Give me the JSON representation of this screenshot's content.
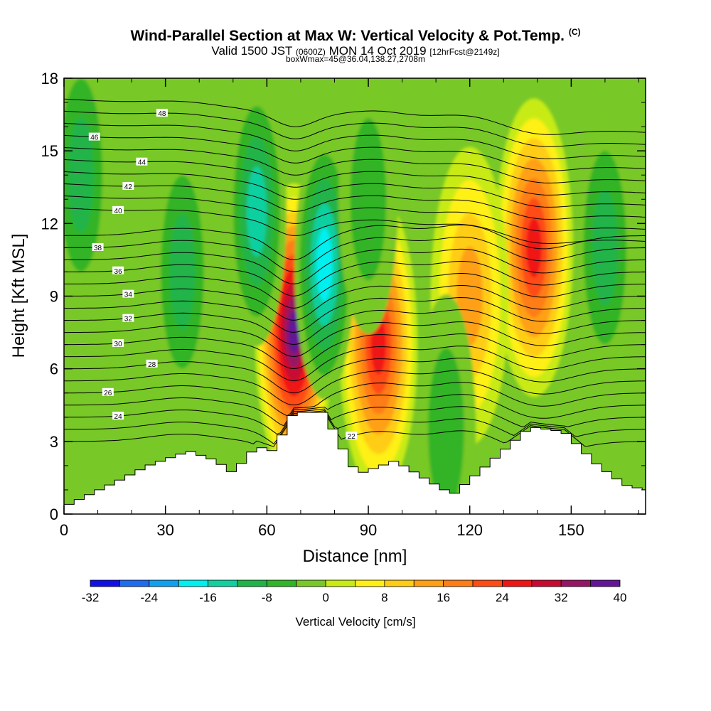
{
  "title": {
    "main": "Wind-Parallel Section at Max W: Vertical Velocity & Pot.Temp.",
    "mark": "(C)",
    "line2_a": "Valid 1500 JST",
    "line2_b": "(0600Z)",
    "line2_c": "MON 14 Oct 2019",
    "line2_d": "[12hrFcst@2149z]",
    "line3": "boxWmax=45@36.04,138.27,2708m"
  },
  "chart_data": {
    "type": "heatmap",
    "xlabel": "Distance [nm]",
    "ylabel": "Height [Kft MSL]",
    "xlim": [
      0,
      172
    ],
    "ylim": [
      0,
      18
    ],
    "x_ticks": [
      0,
      30,
      60,
      90,
      120,
      150
    ],
    "y_ticks": [
      0,
      3,
      6,
      9,
      12,
      15,
      18
    ],
    "colorbar": {
      "label": "Vertical Velocity [cm/s]",
      "ticks": [
        -32,
        -24,
        -16,
        -8,
        0,
        8,
        16,
        24,
        32,
        40
      ],
      "bins": [
        {
          "from": -32,
          "to": -28,
          "color": "#1010e6"
        },
        {
          "from": -28,
          "to": -24,
          "color": "#1e6cf0"
        },
        {
          "from": -24,
          "to": -20,
          "color": "#10a0f0"
        },
        {
          "from": -20,
          "to": -16,
          "color": "#00f0f0"
        },
        {
          "from": -16,
          "to": -12,
          "color": "#10d0a0"
        },
        {
          "from": -12,
          "to": -8,
          "color": "#20b448"
        },
        {
          "from": -8,
          "to": -4,
          "color": "#32b428"
        },
        {
          "from": -4,
          "to": 0,
          "color": "#78c828"
        },
        {
          "from": 0,
          "to": 4,
          "color": "#c8eb14"
        },
        {
          "from": 4,
          "to": 8,
          "color": "#fff014"
        },
        {
          "from": 8,
          "to": 12,
          "color": "#ffcd14"
        },
        {
          "from": 12,
          "to": 16,
          "color": "#ffa014"
        },
        {
          "from": 16,
          "to": 20,
          "color": "#ff7d14"
        },
        {
          "from": 20,
          "to": 24,
          "color": "#ff4b14"
        },
        {
          "from": 24,
          "to": 28,
          "color": "#f01414"
        },
        {
          "from": 28,
          "to": 32,
          "color": "#c80a32"
        },
        {
          "from": 32,
          "to": 36,
          "color": "#961464"
        },
        {
          "from": 36,
          "to": 40,
          "color": "#641496"
        }
      ]
    },
    "vertical_velocity_features": [
      {
        "x": 68,
        "y": 7.5,
        "peak": 38
      },
      {
        "x": 93,
        "y": 7.0,
        "peak": 26
      },
      {
        "x": 139,
        "y": 11.0,
        "peak": 28
      },
      {
        "x": 120,
        "y": 9.0,
        "peak": 15
      },
      {
        "x": 77,
        "y": 10.3,
        "peak": -19
      },
      {
        "x": 57,
        "y": 12.5,
        "peak": -16
      },
      {
        "x": 90,
        "y": 13.0,
        "peak": -8
      },
      {
        "x": 35,
        "y": 10.0,
        "peak": -10
      },
      {
        "x": 5,
        "y": 14.0,
        "peak": -9
      },
      {
        "x": 160,
        "y": 11.0,
        "peak": -10
      },
      {
        "x": 113,
        "y": 3.5,
        "peak": -7
      }
    ],
    "terrain": [
      {
        "x": 0,
        "y": 0.3
      },
      {
        "x": 15,
        "y": 1.3
      },
      {
        "x": 25,
        "y": 2.0
      },
      {
        "x": 37,
        "y": 2.6
      },
      {
        "x": 45,
        "y": 2.2
      },
      {
        "x": 50,
        "y": 1.7
      },
      {
        "x": 57,
        "y": 2.8
      },
      {
        "x": 62,
        "y": 2.6
      },
      {
        "x": 68,
        "y": 4.2
      },
      {
        "x": 77,
        "y": 4.2
      },
      {
        "x": 85,
        "y": 2.0
      },
      {
        "x": 88,
        "y": 1.7
      },
      {
        "x": 98,
        "y": 2.2
      },
      {
        "x": 110,
        "y": 1.2
      },
      {
        "x": 115,
        "y": 0.8
      },
      {
        "x": 125,
        "y": 2.0
      },
      {
        "x": 138,
        "y": 3.6
      },
      {
        "x": 148,
        "y": 3.4
      },
      {
        "x": 158,
        "y": 2.0
      },
      {
        "x": 166,
        "y": 1.2
      },
      {
        "x": 172,
        "y": 1.0
      }
    ],
    "isentropes": [
      {
        "value": 22,
        "label": "22",
        "label_x": 85
      },
      {
        "value": 24,
        "label": "24",
        "label_x": 16
      },
      {
        "value": 26,
        "label": "26",
        "label_x": 13
      },
      {
        "value": 28,
        "label": "28",
        "label_x": 26
      },
      {
        "value": 30,
        "label": "30",
        "label_x": 16
      },
      {
        "value": 32,
        "label": "32",
        "label_x": 19
      },
      {
        "value": 34,
        "label": "34",
        "label_x": 19
      },
      {
        "value": 36,
        "label": "36",
        "label_x": 16
      },
      {
        "value": 38,
        "label": "38",
        "label_x": 10
      },
      {
        "value": 40,
        "label": "40",
        "label_x": 16
      },
      {
        "value": 42,
        "label": "42",
        "label_x": 19
      },
      {
        "value": 44,
        "label": "44",
        "label_x": 23
      },
      {
        "value": 46,
        "label": "46",
        "label_x": 9
      },
      {
        "value": 48,
        "label": "48",
        "label_x": 29
      }
    ]
  }
}
